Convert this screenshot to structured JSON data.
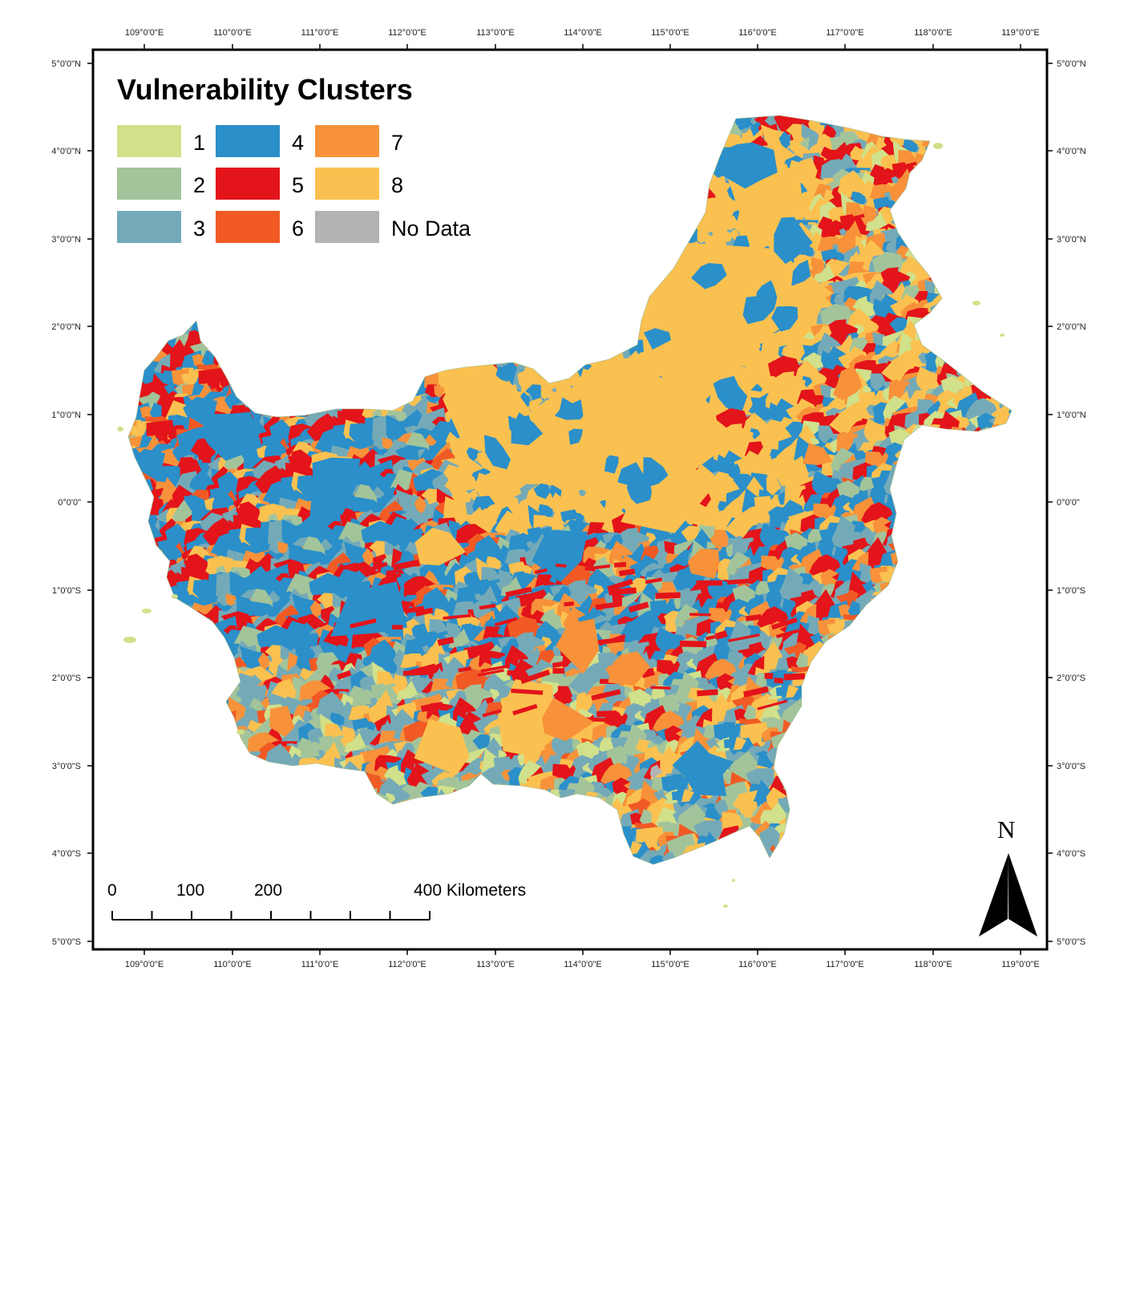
{
  "map": {
    "title": "Vulnerability Clusters",
    "legend": [
      {
        "label": "1",
        "color": "#d1e08a"
      },
      {
        "label": "2",
        "color": "#a3c49a"
      },
      {
        "label": "3",
        "color": "#74aab8"
      },
      {
        "label": "4",
        "color": "#2b8fc9"
      },
      {
        "label": "5",
        "color": "#e3141a"
      },
      {
        "label": "6",
        "color": "#f15a24"
      },
      {
        "label": "7",
        "color": "#f7923a"
      },
      {
        "label": "8",
        "color": "#fbc150"
      },
      {
        "label": "No Data",
        "color": "#b3b3b3"
      }
    ],
    "lon_ticks": [
      "109°0'0\"E",
      "110°0'0\"E",
      "111°0'0\"E",
      "112°0'0\"E",
      "113°0'0\"E",
      "114°0'0\"E",
      "115°0'0\"E",
      "116°0'0\"E",
      "117°0'0\"E",
      "118°0'0\"E",
      "119°0'0\"E"
    ],
    "lat_ticks_left": [
      "5°0'0\"N",
      "4°0'0\"N",
      "3°0'0\"N",
      "2°0'0\"N",
      "1°0'0\"N",
      "0°0'0\"",
      "1°0'0\"S",
      "2°0'0\"S",
      "3°0'0\"S",
      "4°0'0\"S",
      "5°0'0\"S"
    ],
    "lat_ticks_right": [
      "5°0'0\"N",
      "4°0'0\"N",
      "3°0'0\"N",
      "2°0'0\"N",
      "1°0'0\"N",
      "0°0'0\"",
      "1°0'0\"S",
      "2°0'0\"S",
      "3°0'0\"S",
      "4°0'0\"S",
      "5°0'0\"S"
    ],
    "scale_bar": {
      "labels": [
        "0",
        "100",
        "200",
        "400 Kilometers"
      ],
      "values_km": [
        0,
        100,
        200,
        400
      ]
    },
    "north_arrow": {
      "label": "N",
      "icon": "north-arrow-icon"
    },
    "land_colors": [
      "#fbc150",
      "#2b8fc9",
      "#74aab8",
      "#a3c49a",
      "#d1e08a",
      "#e3141a",
      "#f7923a",
      "#f15a24"
    ],
    "no_data_color": "#b3b3b3"
  }
}
